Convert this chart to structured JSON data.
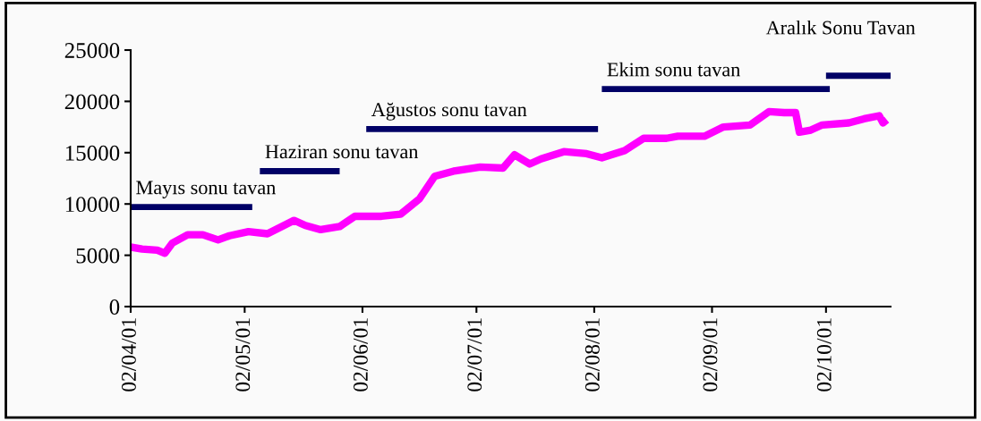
{
  "chart_data": {
    "type": "line",
    "x": [
      "2001-04-02",
      "2001-04-05",
      "2001-04-09",
      "2001-04-11",
      "2001-04-13",
      "2001-04-17",
      "2001-04-21",
      "2001-04-25",
      "2001-04-28",
      "2001-05-03",
      "2001-05-08",
      "2001-05-15",
      "2001-05-18",
      "2001-05-22",
      "2001-05-27",
      "2001-05-31",
      "2001-06-07",
      "2001-06-12",
      "2001-06-17",
      "2001-06-21",
      "2001-06-26",
      "2001-07-03",
      "2001-07-09",
      "2001-07-12",
      "2001-07-16",
      "2001-07-19",
      "2001-07-25",
      "2001-07-31",
      "2001-08-04",
      "2001-08-10",
      "2001-08-15",
      "2001-08-21",
      "2001-08-24",
      "2001-08-31",
      "2001-09-05",
      "2001-09-12",
      "2001-09-17",
      "2001-09-21",
      "2001-09-24",
      "2001-09-25",
      "2001-09-28",
      "2001-10-01",
      "2001-10-08",
      "2001-10-12",
      "2001-10-16",
      "2001-10-17",
      "2001-10-18"
    ],
    "series": [
      {
        "color": "#ff00ff",
        "values": [
          5800,
          5600,
          5500,
          5200,
          6200,
          7000,
          7000,
          6500,
          6900,
          7300,
          7100,
          8400,
          7900,
          7500,
          7800,
          8800,
          8800,
          9000,
          10500,
          12700,
          13200,
          13600,
          13500,
          14800,
          13900,
          14400,
          15100,
          14900,
          14500,
          15200,
          16400,
          16400,
          16600,
          16600,
          17500,
          17700,
          19000,
          18900,
          18900,
          17000,
          17200,
          17700,
          17900,
          18300,
          18600,
          17900,
          18200
        ]
      },
      {
        "name": "Mayıs sonu tavan",
        "color": "#000066",
        "x": [
          "2001-04-02",
          "2001-05-04"
        ],
        "values": [
          9700,
          9700
        ]
      },
      {
        "name": "Haziran sonu tavan",
        "color": "#000066",
        "x": [
          "2001-05-06",
          "2001-05-27"
        ],
        "values": [
          13200,
          13200
        ]
      },
      {
        "name": "Ağustos sonu tavan",
        "color": "#000066",
        "x": [
          "2001-06-03",
          "2001-08-03"
        ],
        "values": [
          17300,
          17300
        ]
      },
      {
        "name": "Ekim sonu tavan",
        "color": "#000066",
        "x": [
          "2001-08-04",
          "2001-10-03"
        ],
        "values": [
          21200,
          21200
        ]
      },
      {
        "name": "Aralık Sonu Tavan",
        "color": "#000066",
        "x": [
          "2001-10-02",
          "2001-10-19"
        ],
        "values": [
          22500,
          22500
        ]
      }
    ],
    "xlim": [
      "2001-04-02",
      "2001-10-19"
    ],
    "xticks": [
      {
        "value": "2001-04-02",
        "label": "02/04/01"
      },
      {
        "value": "2001-05-02",
        "label": "02/05/01"
      },
      {
        "value": "2001-06-02",
        "label": "02/06/01"
      },
      {
        "value": "2001-07-02",
        "label": "02/07/01"
      },
      {
        "value": "2001-08-02",
        "label": "02/08/01"
      },
      {
        "value": "2001-09-02",
        "label": "02/09/01"
      },
      {
        "value": "2001-10-02",
        "label": "02/10/01"
      }
    ],
    "ylim": [
      0,
      25000
    ],
    "yticks": [
      0,
      5000,
      10000,
      15000,
      20000,
      25000
    ],
    "grid": false,
    "legend": false
  }
}
